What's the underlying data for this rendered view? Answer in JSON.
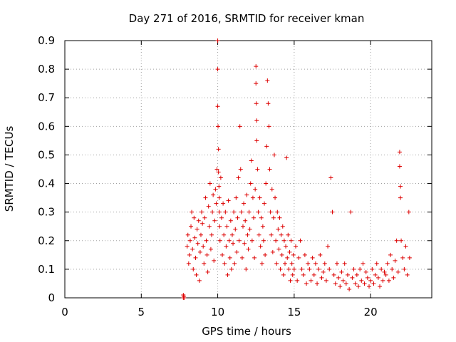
{
  "chart_data": {
    "type": "scatter",
    "title": "Day 271 of 2016, SRMTID for receiver kman",
    "xlabel": "GPS time / hours",
    "ylabel": "SRMTID / TECUs",
    "xlim": [
      0,
      24
    ],
    "ylim": [
      0,
      0.9
    ],
    "xticks": [
      0,
      5,
      10,
      15,
      20
    ],
    "yticks": [
      0,
      0.1,
      0.2,
      0.3,
      0.4,
      0.5,
      0.6,
      0.7,
      0.8,
      0.9
    ],
    "xtick_labels": [
      "0",
      "5",
      "10",
      "15",
      "20"
    ],
    "ytick_labels": [
      "0",
      "0.1",
      "0.2",
      "0.3",
      "0.4",
      "0.5",
      "0.6",
      "0.7",
      "0.8",
      "0.9"
    ],
    "grid": true,
    "marker": "plus",
    "color": "#dd0000",
    "series": [
      {
        "name": "SRMTID",
        "x": [
          7.75,
          7.75,
          7.78,
          7.8,
          8.0,
          8.05,
          8.1,
          8.15,
          8.2,
          8.25,
          8.3,
          8.35,
          8.4,
          8.45,
          8.5,
          8.55,
          8.6,
          8.65,
          8.7,
          8.75,
          8.8,
          8.85,
          8.9,
          8.95,
          9.0,
          9.05,
          9.1,
          9.15,
          9.2,
          9.25,
          9.3,
          9.35,
          9.4,
          9.45,
          9.5,
          9.55,
          9.6,
          9.65,
          9.7,
          9.75,
          9.8,
          9.85,
          9.9,
          9.95,
          10.0,
          10.0,
          10.0,
          10.02,
          10.05,
          10.05,
          10.08,
          10.1,
          10.1,
          10.12,
          10.15,
          10.2,
          10.25,
          10.3,
          10.35,
          10.4,
          10.45,
          10.5,
          10.55,
          10.6,
          10.65,
          10.7,
          10.75,
          10.8,
          10.85,
          10.9,
          10.95,
          11.0,
          11.05,
          11.1,
          11.15,
          11.2,
          11.25,
          11.3,
          11.35,
          11.4,
          11.45,
          11.5,
          11.55,
          11.6,
          11.65,
          11.7,
          11.75,
          11.8,
          11.85,
          11.9,
          11.95,
          12.0,
          12.05,
          12.1,
          12.15,
          12.2,
          12.25,
          12.3,
          12.35,
          12.4,
          12.45,
          12.5,
          12.5,
          12.52,
          12.55,
          12.55,
          12.6,
          12.65,
          12.7,
          12.75,
          12.8,
          12.85,
          12.9,
          12.95,
          13.0,
          13.05,
          13.1,
          13.15,
          13.2,
          13.25,
          13.3,
          13.35,
          13.4,
          13.45,
          13.5,
          13.55,
          13.6,
          13.65,
          13.7,
          13.75,
          13.8,
          13.85,
          13.9,
          13.95,
          14.0,
          14.05,
          14.1,
          14.15,
          14.2,
          14.25,
          14.3,
          14.35,
          14.4,
          14.45,
          14.5,
          14.55,
          14.6,
          14.65,
          14.7,
          14.75,
          14.8,
          14.85,
          14.9,
          14.95,
          15.0,
          15.1,
          15.2,
          15.3,
          15.4,
          15.5,
          15.6,
          15.7,
          15.8,
          15.9,
          16.0,
          16.1,
          16.2,
          16.3,
          16.4,
          16.5,
          16.6,
          16.7,
          16.8,
          16.9,
          17.0,
          17.1,
          17.2,
          17.3,
          17.4,
          17.5,
          17.6,
          17.7,
          17.8,
          17.9,
          18.0,
          18.1,
          18.2,
          18.3,
          18.4,
          18.5,
          18.6,
          18.7,
          18.8,
          18.9,
          19.0,
          19.1,
          19.2,
          19.3,
          19.4,
          19.5,
          19.6,
          19.7,
          19.8,
          19.9,
          20.0,
          20.1,
          20.2,
          20.3,
          20.4,
          20.5,
          20.6,
          20.7,
          20.8,
          20.9,
          21.0,
          21.1,
          21.2,
          21.3,
          21.4,
          21.5,
          21.6,
          21.7,
          21.8,
          21.9,
          21.9,
          21.95,
          21.95,
          22.0,
          22.1,
          22.2,
          22.3,
          22.4,
          22.5,
          22.55
        ],
        "y": [
          0.0,
          0.01,
          0.005,
          0.0,
          0.18,
          0.22,
          0.12,
          0.15,
          0.2,
          0.25,
          0.3,
          0.17,
          0.1,
          0.28,
          0.21,
          0.14,
          0.08,
          0.24,
          0.19,
          0.27,
          0.06,
          0.16,
          0.22,
          0.3,
          0.26,
          0.18,
          0.12,
          0.28,
          0.35,
          0.2,
          0.15,
          0.09,
          0.32,
          0.25,
          0.4,
          0.17,
          0.22,
          0.3,
          0.36,
          0.13,
          0.27,
          0.38,
          0.33,
          0.45,
          0.9,
          0.8,
          0.67,
          0.6,
          0.52,
          0.44,
          0.39,
          0.35,
          0.3,
          0.25,
          0.2,
          0.42,
          0.28,
          0.15,
          0.33,
          0.22,
          0.12,
          0.3,
          0.18,
          0.25,
          0.08,
          0.34,
          0.2,
          0.14,
          0.27,
          0.1,
          0.22,
          0.19,
          0.3,
          0.12,
          0.24,
          0.35,
          0.16,
          0.28,
          0.42,
          0.2,
          0.6,
          0.45,
          0.3,
          0.14,
          0.25,
          0.33,
          0.19,
          0.27,
          0.1,
          0.36,
          0.22,
          0.17,
          0.3,
          0.24,
          0.4,
          0.48,
          0.2,
          0.35,
          0.28,
          0.14,
          0.38,
          0.81,
          0.75,
          0.68,
          0.62,
          0.55,
          0.45,
          0.3,
          0.22,
          0.35,
          0.18,
          0.28,
          0.12,
          0.25,
          0.2,
          0.33,
          0.15,
          0.4,
          0.53,
          0.76,
          0.68,
          0.6,
          0.45,
          0.3,
          0.22,
          0.38,
          0.16,
          0.28,
          0.5,
          0.35,
          0.2,
          0.12,
          0.3,
          0.24,
          0.17,
          0.28,
          0.1,
          0.22,
          0.15,
          0.25,
          0.08,
          0.2,
          0.12,
          0.18,
          0.49,
          0.14,
          0.22,
          0.1,
          0.16,
          0.06,
          0.2,
          0.12,
          0.08,
          0.15,
          0.1,
          0.18,
          0.06,
          0.14,
          0.2,
          0.1,
          0.08,
          0.15,
          0.05,
          0.12,
          0.1,
          0.06,
          0.14,
          0.08,
          0.12,
          0.05,
          0.1,
          0.15,
          0.07,
          0.09,
          0.12,
          0.06,
          0.18,
          0.1,
          0.42,
          0.3,
          0.08,
          0.05,
          0.12,
          0.07,
          0.04,
          0.09,
          0.06,
          0.12,
          0.05,
          0.08,
          0.03,
          0.3,
          0.07,
          0.1,
          0.05,
          0.08,
          0.04,
          0.1,
          0.06,
          0.12,
          0.05,
          0.09,
          0.07,
          0.04,
          0.06,
          0.1,
          0.05,
          0.08,
          0.12,
          0.07,
          0.04,
          0.1,
          0.06,
          0.09,
          0.08,
          0.12,
          0.06,
          0.15,
          0.1,
          0.07,
          0.13,
          0.2,
          0.09,
          0.51,
          0.46,
          0.39,
          0.35,
          0.2,
          0.14,
          0.1,
          0.18,
          0.08,
          0.3,
          0.14
        ]
      }
    ]
  }
}
